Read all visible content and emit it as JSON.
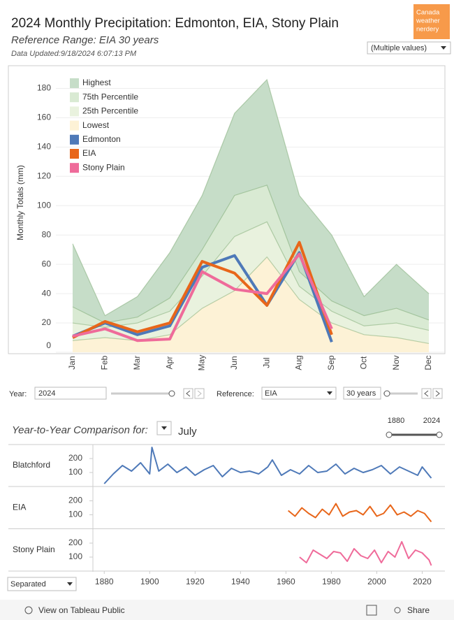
{
  "header": {
    "title": "2024 Monthly Precipitation: Edmonton, EIA, Stony Plain",
    "subtitle": "Reference Range: EIA 30 years",
    "updated": "Data Updated:9/18/2024 6:07:13 PM",
    "logo": [
      "Canada",
      "weather",
      "nerdery"
    ],
    "location_filter": "(Multiple values)"
  },
  "chart_data": [
    {
      "type": "band",
      "y_label": "Monthly Totals (mm)",
      "categories": [
        "Jan",
        "Feb",
        "Mar",
        "Apr",
        "May",
        "Jun",
        "Jul",
        "Aug",
        "Sep",
        "Oct",
        "Nov",
        "Dec"
      ],
      "series": [
        {
          "name": "Highest",
          "mark": "area",
          "color": "#c6ddc8",
          "values": [
            74,
            25,
            38,
            68,
            107,
            163,
            186,
            107,
            80,
            38,
            60,
            40
          ]
        },
        {
          "name": "75th Percentile",
          "mark": "area",
          "color": "#d9ead3",
          "values": [
            31,
            20,
            24,
            37,
            70,
            107,
            114,
            55,
            35,
            25,
            30,
            22
          ]
        },
        {
          "name": "25th Percentile",
          "mark": "area",
          "color": "#e9f2de",
          "values": [
            20,
            17,
            20,
            28,
            52,
            79,
            89,
            45,
            28,
            18,
            20,
            15
          ]
        },
        {
          "name": "Lowest",
          "mark": "area",
          "color": "#fdf2d6",
          "values": [
            8,
            10,
            8,
            12,
            30,
            42,
            65,
            36,
            20,
            12,
            10,
            6
          ]
        },
        {
          "name": "Edmonton",
          "mark": "line",
          "color": "#4e79b8",
          "values": [
            11,
            20,
            12,
            18,
            58,
            66,
            32,
            68,
            7,
            null,
            null,
            null
          ]
        },
        {
          "name": "EIA",
          "mark": "line",
          "color": "#e8661a",
          "values": [
            10,
            21,
            14,
            20,
            62,
            54,
            32,
            75,
            12,
            null,
            null,
            null
          ]
        },
        {
          "name": "Stony Plain",
          "mark": "line",
          "color": "#ef6b9a",
          "values": [
            11,
            16,
            8,
            9,
            55,
            43,
            40,
            67,
            16,
            null,
            null,
            null
          ]
        }
      ],
      "ylim": [
        0,
        195
      ],
      "yticks": [
        0,
        20,
        40,
        60,
        80,
        100,
        120,
        140,
        160,
        180
      ],
      "grid": true,
      "legend": "top-left"
    },
    {
      "type": "line",
      "title": "Blatchford",
      "color": "#4e79b8",
      "x": [
        1880,
        1884,
        1888,
        1892,
        1896,
        1900,
        1901,
        1904,
        1908,
        1912,
        1916,
        1920,
        1924,
        1928,
        1932,
        1936,
        1940,
        1944,
        1948,
        1952,
        1954,
        1958,
        1962,
        1966,
        1970,
        1974,
        1978,
        1982,
        1986,
        1990,
        1994,
        1998,
        2002,
        2006,
        2010,
        2014,
        2018,
        2020,
        2024
      ],
      "values": [
        20,
        90,
        150,
        110,
        170,
        90,
        280,
        110,
        160,
        100,
        140,
        80,
        120,
        150,
        70,
        130,
        100,
        110,
        90,
        140,
        190,
        80,
        120,
        90,
        150,
        100,
        110,
        160,
        90,
        130,
        100,
        120,
        150,
        90,
        140,
        110,
        80,
        140,
        60
      ],
      "xlim": [
        1875,
        2030
      ],
      "ylim": [
        0,
        300
      ],
      "yticks": [
        100,
        200
      ]
    },
    {
      "type": "line",
      "title": "EIA",
      "color": "#e8661a",
      "x": [
        1961,
        1964,
        1967,
        1970,
        1973,
        1976,
        1979,
        1982,
        1985,
        1988,
        1991,
        1994,
        1997,
        2000,
        2003,
        2006,
        2009,
        2012,
        2015,
        2018,
        2021,
        2024
      ],
      "values": [
        130,
        90,
        150,
        110,
        80,
        140,
        100,
        180,
        90,
        120,
        130,
        100,
        160,
        90,
        110,
        170,
        100,
        120,
        90,
        130,
        110,
        50
      ],
      "xlim": [
        1875,
        2030
      ],
      "ylim": [
        0,
        300
      ],
      "yticks": [
        100,
        200
      ]
    },
    {
      "type": "line",
      "title": "Stony Plain",
      "color": "#ef6b9a",
      "x": [
        1966,
        1969,
        1972,
        1975,
        1978,
        1981,
        1984,
        1987,
        1990,
        1993,
        1996,
        1999,
        2002,
        2005,
        2008,
        2011,
        2014,
        2017,
        2020,
        2023,
        2024
      ],
      "values": [
        100,
        60,
        150,
        120,
        90,
        140,
        130,
        70,
        160,
        110,
        90,
        150,
        60,
        140,
        100,
        210,
        90,
        150,
        130,
        80,
        40
      ],
      "xlim": [
        1875,
        2030
      ],
      "ylim": [
        0,
        300
      ],
      "yticks": [
        100,
        200
      ],
      "xticks": [
        1880,
        1900,
        1920,
        1940,
        1960,
        1980,
        2000,
        2020
      ]
    }
  ],
  "controls": {
    "year_label": "Year:",
    "year": "2024",
    "reference_label": "Reference:",
    "reference": "EIA",
    "period": "30 years",
    "comparison_label": "Year-to-Year Comparison for:",
    "month": "July",
    "range": [
      "1880",
      "2024"
    ],
    "layout": "Separated"
  },
  "footer": {
    "link": "View on Tableau Public",
    "share": "Share"
  }
}
